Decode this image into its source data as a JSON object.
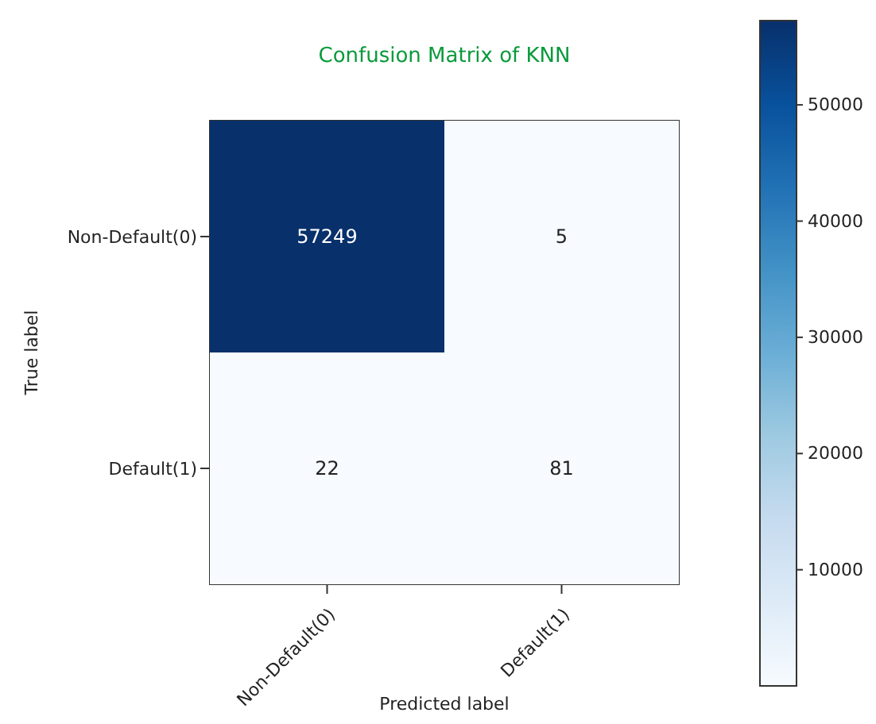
{
  "chart_data": {
    "type": "heatmap",
    "title": "Confusion Matrix of KNN",
    "xlabel": "Predicted label",
    "ylabel": "True label",
    "categories": [
      "Non-Default(0)",
      "Default(1)"
    ],
    "y_categories": [
      "Non-Default(0)",
      "Default(1)"
    ],
    "cells": [
      [
        57249,
        5
      ],
      [
        22,
        81
      ]
    ],
    "clim": [
      5,
      57249
    ],
    "cticks": [
      10000,
      20000,
      30000,
      40000,
      50000
    ],
    "data_labels": true
  }
}
